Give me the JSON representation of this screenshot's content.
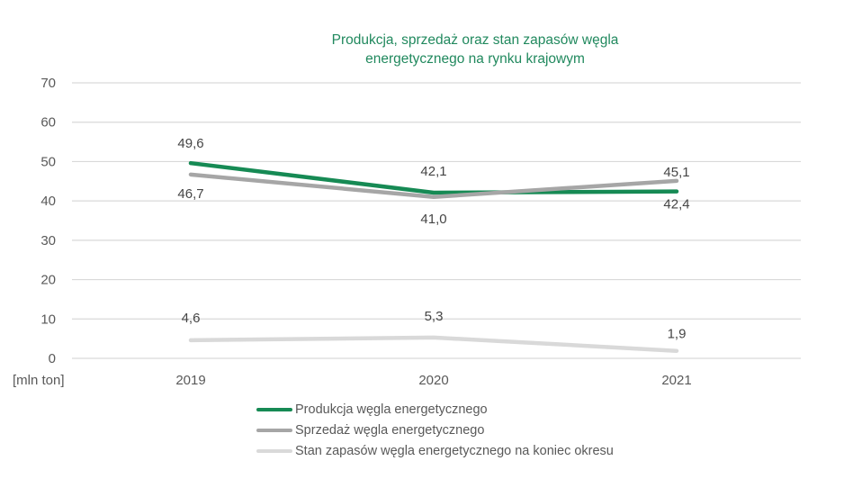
{
  "chart_data": {
    "type": "line",
    "title": "Produkcja, sprzedaż oraz stan zapasów węgla energetycznego na rynku krajowym",
    "title_color": "#21895e",
    "unit_label": "[mln ton]",
    "categories": [
      "2019",
      "2020",
      "2021"
    ],
    "series": [
      {
        "name": "Produkcja węgla energetycznego",
        "color": "#168a54",
        "values": [
          49.6,
          42.1,
          42.4
        ],
        "labels": [
          "49,6",
          "42,1",
          "42,4"
        ],
        "label_dy": [
          -17,
          -19,
          19
        ]
      },
      {
        "name": "Sprzedaż węgla energetycznego",
        "color": "#a6a6a6",
        "values": [
          46.7,
          41.0,
          45.1
        ],
        "labels": [
          "46,7",
          "41,0",
          "45,1"
        ],
        "label_dy": [
          26,
          29,
          -5
        ]
      },
      {
        "name": "Stan zapasów węgla energetycznego na koniec okresu",
        "color": "#d9d9d9",
        "values": [
          4.6,
          5.3,
          1.9
        ],
        "labels": [
          "4,6",
          "5,3",
          "1,9"
        ],
        "label_dy": [
          -20,
          -19,
          -14
        ]
      }
    ],
    "ylim": [
      0,
      70
    ],
    "yticks": [
      0,
      10,
      20,
      30,
      40,
      50,
      60,
      70
    ],
    "grid": true,
    "legend_position": "bottom-left",
    "gridline_color": "#d9d9d9",
    "axis_text_color": "#595959",
    "data_label_color": "#454545"
  }
}
